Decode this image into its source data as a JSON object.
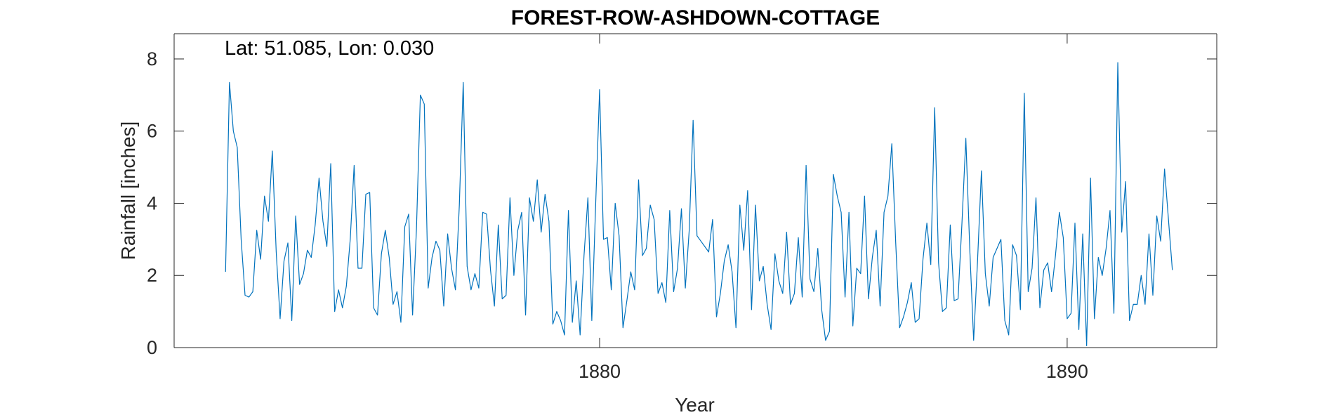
{
  "chart_data": {
    "type": "line",
    "title": "FOREST-ROW-ASHDOWN-COTTAGE",
    "annotation": "Lat: 51.085, Lon: 0.030",
    "xlabel": "Year",
    "ylabel": "Rainfall [inches]",
    "xlim": [
      1870.9,
      1893.2
    ],
    "ylim": [
      0,
      8.7
    ],
    "xticks": [
      1880,
      1890
    ],
    "yticks": [
      0,
      2,
      4,
      6,
      8
    ],
    "grid": false,
    "line_color": "#0072BD",
    "series": [
      {
        "start_year": 1872.0,
        "values": [
          2.1,
          7.35,
          6.0,
          5.55,
          3.0,
          1.45,
          1.4,
          1.55,
          3.25,
          2.45,
          4.2,
          3.5,
          5.45,
          2.65,
          0.8,
          2.4,
          2.9,
          0.75,
          3.65,
          1.75,
          2.05,
          2.7,
          2.5,
          3.4,
          4.7,
          3.5,
          2.8,
          5.1,
          1.0,
          1.6,
          1.1,
          1.7,
          3.0,
          5.05,
          2.2,
          2.2,
          4.25,
          4.3,
          1.1,
          0.9,
          2.6,
          3.25,
          2.5,
          1.2,
          1.55,
          0.7,
          3.35,
          3.7,
          0.9,
          3.3,
          7.0,
          6.75,
          1.65,
          2.5,
          2.95,
          2.7,
          1.15,
          3.15,
          2.2,
          1.6,
          3.95,
          7.35,
          2.25,
          1.6,
          2.05,
          1.65,
          3.75,
          3.7,
          2.15,
          1.15,
          3.4,
          1.35,
          1.45,
          4.15,
          2.0,
          3.25,
          3.75,
          0.9,
          4.15,
          3.5,
          4.65,
          3.2,
          4.25,
          3.5,
          0.65,
          1.0,
          0.75,
          0.35,
          3.8,
          0.7,
          1.85,
          0.35,
          2.55,
          4.15,
          0.75,
          4.0,
          7.15,
          3.0,
          3.05,
          1.6,
          4.0,
          3.1,
          0.55,
          1.3,
          2.1,
          1.6,
          4.65,
          2.55,
          2.75,
          3.95,
          3.55,
          1.5,
          1.8,
          1.25,
          3.8,
          1.55,
          2.2,
          3.85,
          1.65,
          3.25,
          6.3,
          3.1,
          2.95,
          2.8,
          2.65,
          3.55,
          0.85,
          1.5,
          2.4,
          2.85,
          2.1,
          0.55,
          3.95,
          2.7,
          4.35,
          1.05,
          3.95,
          1.85,
          2.25,
          1.2,
          0.5,
          2.6,
          1.85,
          1.5,
          3.2,
          1.2,
          1.5,
          3.05,
          1.4,
          5.05,
          1.9,
          1.55,
          2.75,
          1.05,
          0.2,
          0.45,
          4.8,
          4.2,
          3.75,
          1.4,
          3.75,
          0.6,
          2.2,
          2.05,
          4.2,
          1.35,
          2.5,
          3.25,
          1.15,
          3.75,
          4.2,
          5.65,
          2.9,
          0.55,
          0.85,
          1.25,
          1.8,
          0.7,
          0.8,
          2.45,
          3.45,
          2.3,
          6.65,
          2.35,
          1.0,
          1.1,
          3.4,
          1.3,
          1.35,
          3.45,
          5.8,
          2.75,
          0.2,
          2.4,
          4.9,
          2.05,
          1.15,
          2.5,
          2.75,
          3.0,
          0.75,
          0.35,
          2.85,
          2.55,
          1.05,
          7.05,
          1.55,
          2.2,
          4.15,
          1.1,
          2.15,
          2.35,
          1.55,
          2.55,
          3.75,
          3.05,
          0.8,
          0.95,
          3.45,
          0.5,
          3.15,
          0.05,
          4.7,
          0.8,
          2.5,
          2.0,
          2.75,
          3.8,
          0.95,
          7.9,
          3.2,
          4.6,
          0.75,
          1.2,
          1.2,
          2.0,
          1.2,
          3.15,
          1.45,
          3.65,
          2.95,
          4.95,
          3.55,
          2.15
        ]
      }
    ]
  }
}
